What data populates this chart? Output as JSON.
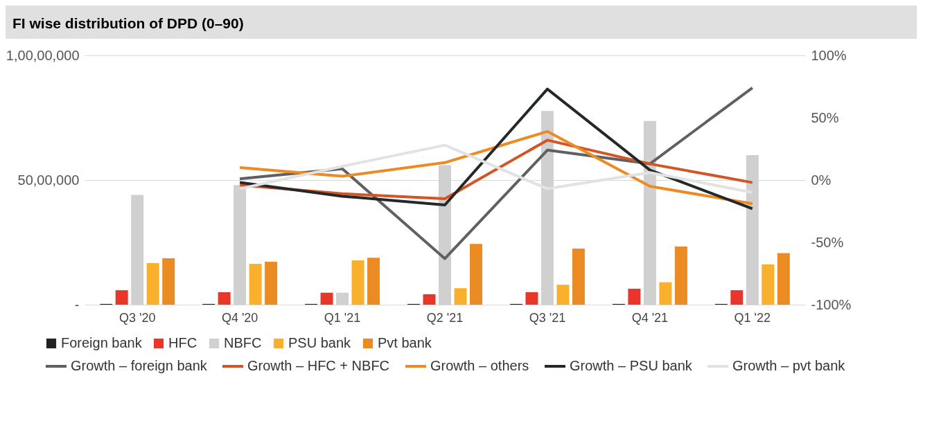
{
  "chart_data": {
    "type": "bar",
    "title": "FI wise distribution of DPD (0–90)",
    "categories": [
      "Q3 '20",
      "Q4 '20",
      "Q1 '21",
      "Q2 '21",
      "Q3 '21",
      "Q4 '21",
      "Q1 '22"
    ],
    "series": [
      {
        "name": "Foreign bank",
        "color": "#222222",
        "values": [
          30000,
          30000,
          30000,
          30000,
          30000,
          30000,
          30000
        ]
      },
      {
        "name": "HFC",
        "color": "#e8372a",
        "values": [
          580000,
          500000,
          480000,
          420000,
          500000,
          640000,
          580000
        ]
      },
      {
        "name": "NBFC",
        "color": "#d0d0d0",
        "values": [
          4400000,
          4800000,
          480000,
          5600000,
          7770000,
          7370000,
          6000000
        ]
      },
      {
        "name": "PSU bank",
        "color": "#f9b02c",
        "values": [
          1670000,
          1640000,
          1780000,
          660000,
          800000,
          900000,
          1620000
        ]
      },
      {
        "name": "Pvt bank",
        "color": "#ea8b24",
        "values": [
          1860000,
          1720000,
          1880000,
          2440000,
          2250000,
          2330000,
          2070000
        ]
      },
      {
        "name": "Growth – foreign bank",
        "type": "line",
        "axis": "y2",
        "color": "#5f6062",
        "values": [
          null,
          1,
          9,
          -63,
          24,
          13,
          74
        ]
      },
      {
        "name": "Growth – HFC + NBFC",
        "type": "line",
        "axis": "y2",
        "color": "#d35424",
        "values": [
          null,
          -4,
          -11,
          -15,
          32,
          13,
          -2
        ]
      },
      {
        "name": "Growth – others",
        "type": "line",
        "axis": "y2",
        "color": "#ec8b23",
        "values": [
          null,
          10,
          3,
          14,
          39,
          -5,
          -19
        ]
      },
      {
        "name": "Growth – PSU bank",
        "type": "line",
        "axis": "y2",
        "color": "#23282a",
        "values": [
          null,
          -2,
          -13,
          -20,
          73,
          8,
          -23
        ]
      },
      {
        "name": "Growth – pvt bank",
        "type": "line",
        "axis": "y2",
        "color": "#e2e2e2",
        "values": [
          null,
          -7,
          11,
          28,
          -7,
          6,
          -10
        ]
      }
    ],
    "ylim": [
      0,
      10000000
    ],
    "yticks": [
      {
        "value": 0,
        "label": "-"
      },
      {
        "value": 5000000,
        "label": "50,00,000"
      },
      {
        "value": 10000000,
        "label": "1,00,00,000"
      }
    ],
    "y2lim": [
      -100,
      100
    ],
    "y2ticks": [
      {
        "value": -100,
        "label": "-100%"
      },
      {
        "value": -50,
        "label": "-50%"
      },
      {
        "value": 0,
        "label": "0%"
      },
      {
        "value": 50,
        "label": "50%"
      },
      {
        "value": 100,
        "label": "100%"
      }
    ],
    "grid": "y",
    "legend": "bottom",
    "marker": "none",
    "line_style": "solid"
  }
}
